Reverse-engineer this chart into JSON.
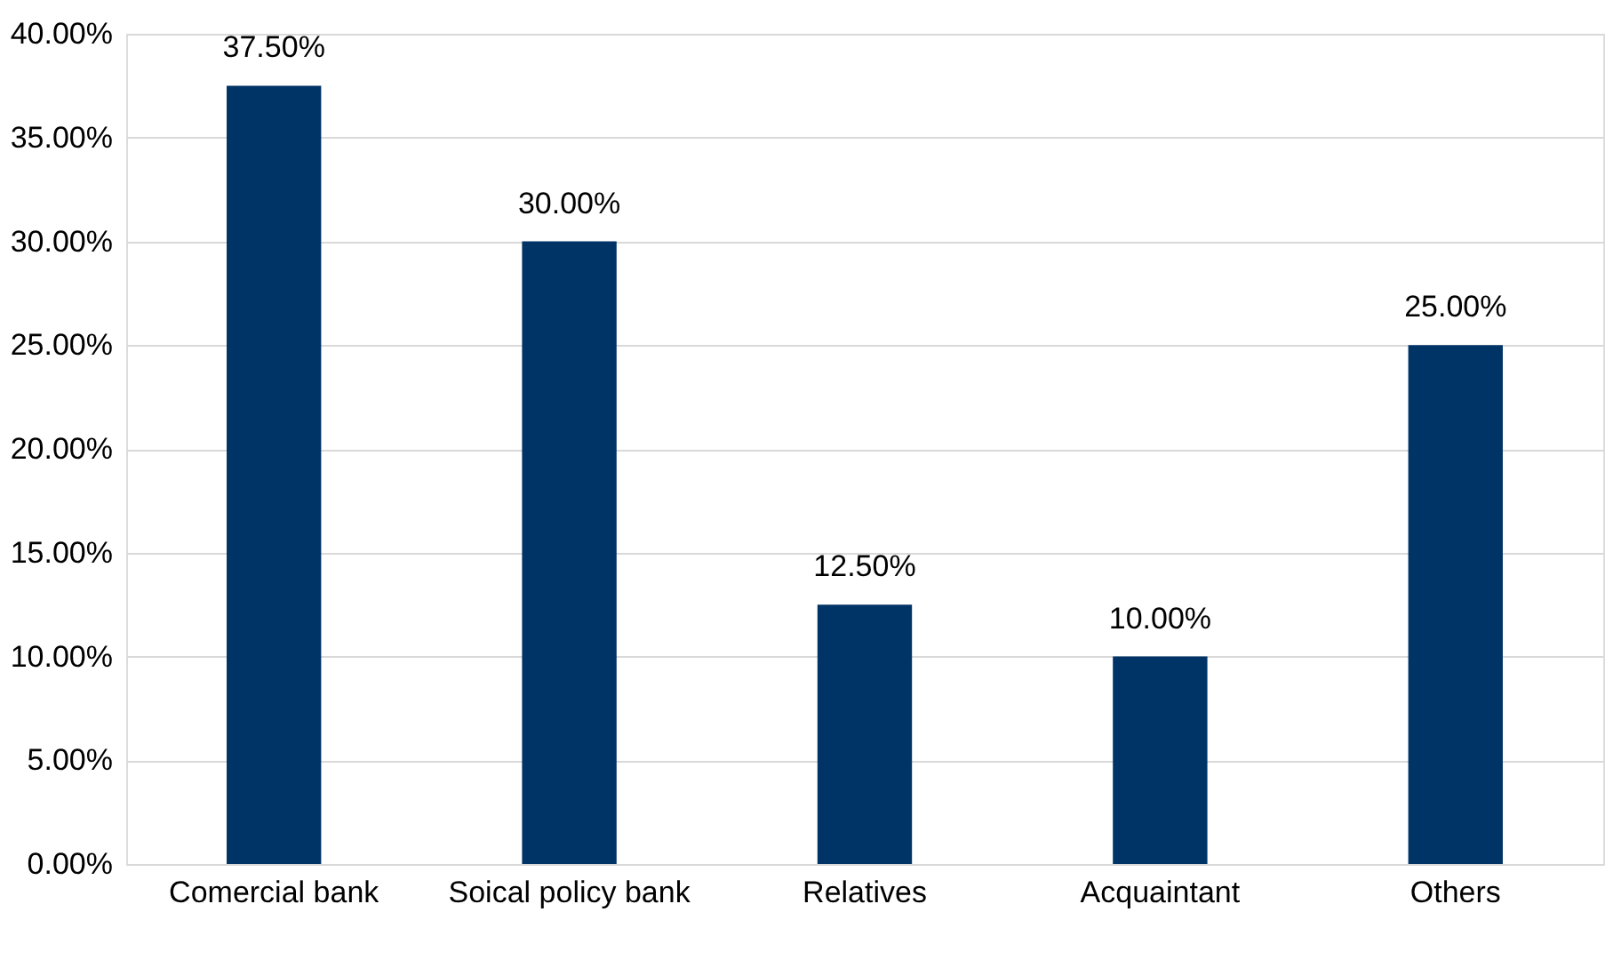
{
  "chart_data": {
    "type": "bar",
    "categories": [
      "Comercial bank",
      "Soical policy bank",
      "Relatives",
      "Acquaintant",
      "Others"
    ],
    "values": [
      37.5,
      30,
      12.5,
      10,
      25
    ],
    "value_labels": [
      "37.50%",
      "30.00%",
      "12.50%",
      "10.00%",
      "25.00%"
    ],
    "color": "#003366",
    "ylim": [
      0,
      40
    ],
    "yticks": [
      {
        "value": 0,
        "label": "0.00%"
      },
      {
        "value": 5,
        "label": "5.00%"
      },
      {
        "value": 10,
        "label": "10.00%"
      },
      {
        "value": 15,
        "label": "15.00%"
      },
      {
        "value": 20,
        "label": "20.00%"
      },
      {
        "value": 25,
        "label": "25.00%"
      },
      {
        "value": 30,
        "label": "30.00%"
      },
      {
        "value": 35,
        "label": "35.00%"
      },
      {
        "value": 40,
        "label": "40.00%"
      }
    ],
    "grid": "y"
  }
}
